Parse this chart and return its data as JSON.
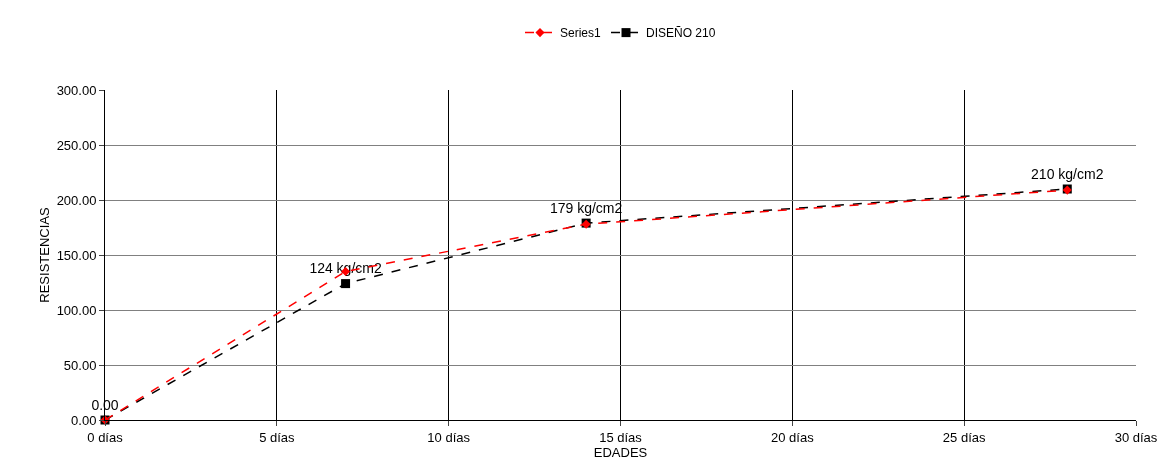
{
  "chart_data": {
    "type": "line",
    "xlabel": "EDADES",
    "ylabel": "RESISTENCIAS",
    "x": [
      0,
      7,
      14,
      28
    ],
    "series": [
      {
        "name": "Series1",
        "color": "#ff0000",
        "values": [
          0,
          135,
          178,
          209
        ],
        "marker": "diamond",
        "line_style": "dashed"
      },
      {
        "name": "DISEÑO 210",
        "color": "#000000",
        "values": [
          0,
          124,
          179,
          210
        ],
        "marker": "square",
        "line_style": "dashed",
        "value_labels": [
          "0.00",
          "124 kg/cm2",
          "179 kg/cm2",
          "210 kg/cm2"
        ]
      }
    ],
    "xlim": [
      0,
      30
    ],
    "xticks": [
      {
        "value": 0,
        "label": "0 días"
      },
      {
        "value": 5,
        "label": "5 días"
      },
      {
        "value": 10,
        "label": "10 días"
      },
      {
        "value": 15,
        "label": "15 días"
      },
      {
        "value": 20,
        "label": "20 días"
      },
      {
        "value": 25,
        "label": "25 días"
      },
      {
        "value": 30,
        "label": "30 días"
      }
    ],
    "ylim": [
      0,
      300
    ],
    "yticks": [
      {
        "value": 0,
        "label": "0.00"
      },
      {
        "value": 50,
        "label": "50.00"
      },
      {
        "value": 100,
        "label": "100.00"
      },
      {
        "value": 150,
        "label": "150.00"
      },
      {
        "value": 200,
        "label": "200.00"
      },
      {
        "value": 250,
        "label": "250.00"
      },
      {
        "value": 300,
        "label": "300.00"
      }
    ],
    "grid": true,
    "legend": "top"
  }
}
